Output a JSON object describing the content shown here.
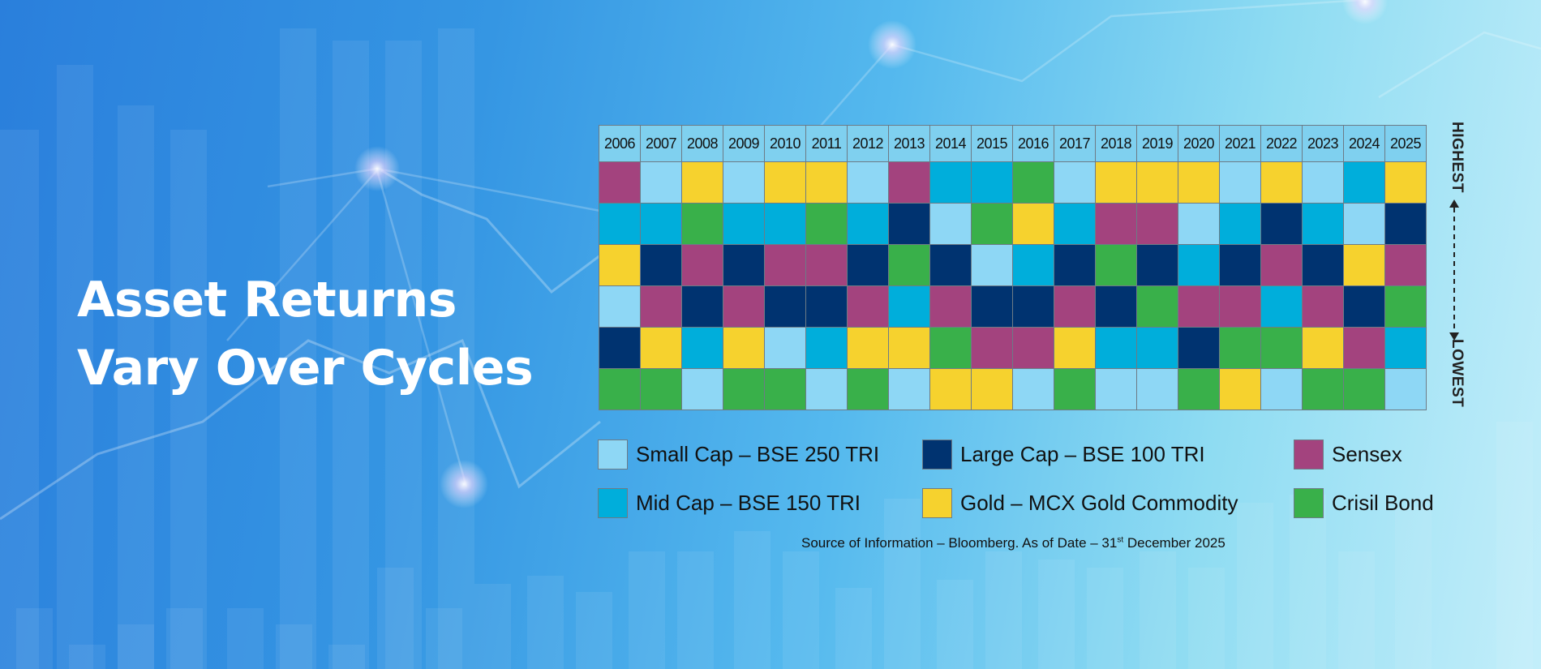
{
  "headline": {
    "line1": "Asset Returns",
    "line2": "Vary Over Cycles"
  },
  "chart_data": {
    "type": "table",
    "title": "",
    "ranking_axis": {
      "top_label": "HIGHEST",
      "bottom_label": "LOWEST"
    },
    "years": [
      "2006",
      "2007",
      "2008",
      "2009",
      "2010",
      "2011",
      "2012",
      "2013",
      "2014",
      "2015",
      "2016",
      "2017",
      "2018",
      "2019",
      "2020",
      "2021",
      "2022",
      "2023",
      "2024",
      "2025"
    ],
    "assets": {
      "small": {
        "label": "Small Cap – BSE 250 TRI",
        "color": "#8ed7f5"
      },
      "large": {
        "label": "Large Cap – BSE 100 TRI",
        "color": "#003370"
      },
      "sensex": {
        "label": "Sensex",
        "color": "#a3437e"
      },
      "mid": {
        "label": "Mid Cap – BSE 150 TRI",
        "color": "#00aedb"
      },
      "gold": {
        "label": "Gold – MCX Gold Commodity",
        "color": "#f6d22e"
      },
      "bond": {
        "label": "Crisil Bond",
        "color": "#39b04a"
      }
    },
    "rankings_by_year": [
      [
        "sensex",
        "mid",
        "gold",
        "small",
        "large",
        "bond"
      ],
      [
        "small",
        "mid",
        "large",
        "sensex",
        "gold",
        "bond"
      ],
      [
        "gold",
        "bond",
        "sensex",
        "large",
        "mid",
        "small"
      ],
      [
        "small",
        "mid",
        "large",
        "sensex",
        "gold",
        "bond"
      ],
      [
        "gold",
        "mid",
        "sensex",
        "large",
        "small",
        "bond"
      ],
      [
        "gold",
        "bond",
        "sensex",
        "large",
        "mid",
        "small"
      ],
      [
        "small",
        "mid",
        "large",
        "sensex",
        "gold",
        "bond"
      ],
      [
        "sensex",
        "large",
        "bond",
        "mid",
        "gold",
        "small"
      ],
      [
        "mid",
        "small",
        "large",
        "sensex",
        "bond",
        "gold"
      ],
      [
        "mid",
        "bond",
        "small",
        "large",
        "sensex",
        "gold"
      ],
      [
        "bond",
        "gold",
        "mid",
        "large",
        "sensex",
        "small"
      ],
      [
        "small",
        "mid",
        "large",
        "sensex",
        "gold",
        "bond"
      ],
      [
        "gold",
        "sensex",
        "bond",
        "large",
        "mid",
        "small"
      ],
      [
        "gold",
        "sensex",
        "large",
        "bond",
        "mid",
        "small"
      ],
      [
        "gold",
        "small",
        "mid",
        "sensex",
        "large",
        "bond"
      ],
      [
        "small",
        "mid",
        "large",
        "sensex",
        "bond",
        "gold"
      ],
      [
        "gold",
        "large",
        "sensex",
        "mid",
        "bond",
        "small"
      ],
      [
        "small",
        "mid",
        "large",
        "sensex",
        "gold",
        "bond"
      ],
      [
        "mid",
        "small",
        "gold",
        "large",
        "sensex",
        "bond"
      ],
      [
        "gold",
        "large",
        "sensex",
        "bond",
        "mid",
        "small"
      ]
    ],
    "legend_order": [
      "small",
      "large",
      "sensex",
      "mid",
      "gold",
      "bond"
    ]
  },
  "source": {
    "prefix": "Source of Information – Bloomberg. As of Date – 31",
    "sup": "st",
    "suffix": " December 2025"
  }
}
